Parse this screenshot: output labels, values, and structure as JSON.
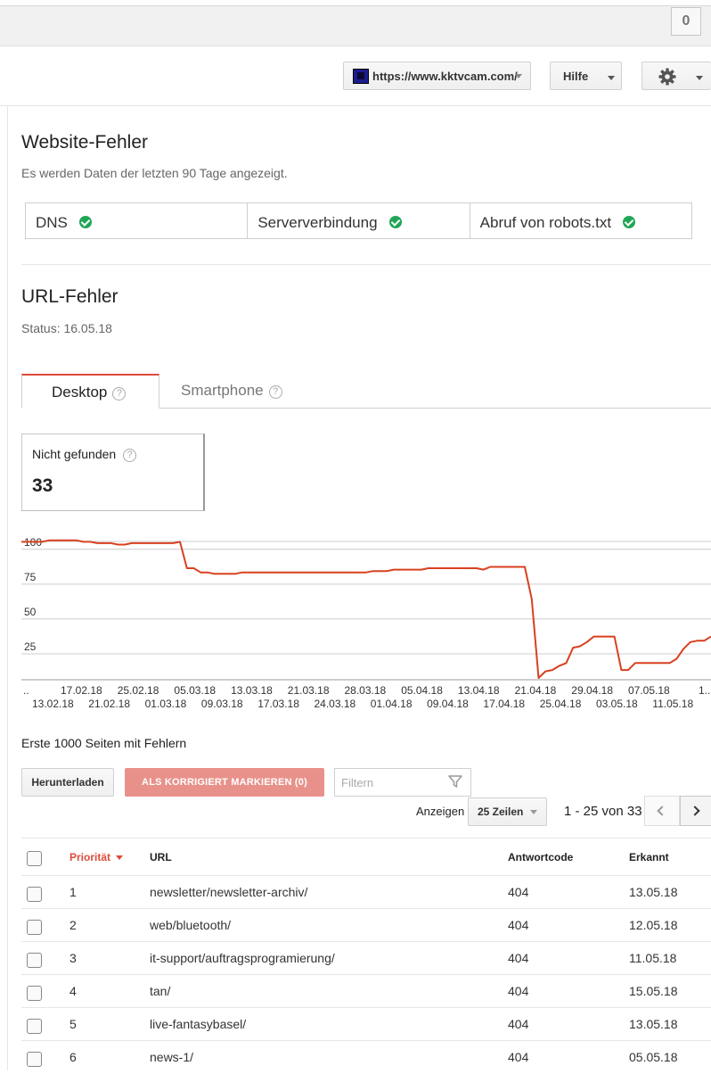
{
  "topbar": {
    "count": "0"
  },
  "header": {
    "site": "https://www.kktvcam.com/",
    "help_label": "Hilfe"
  },
  "site_errors": {
    "title": "Website-Fehler",
    "subtitle": "Es werden Daten der letzten 90 Tage angezeigt.",
    "checks": [
      {
        "label": "DNS",
        "status": "ok"
      },
      {
        "label": "Serververbindung",
        "status": "ok"
      },
      {
        "label": "Abruf von robots.txt",
        "status": "ok"
      }
    ]
  },
  "url_errors": {
    "title": "URL-Fehler",
    "status": "Status: 16.05.18",
    "tabs": [
      "Desktop",
      "Smartphone"
    ],
    "active_tab": "Desktop",
    "metric_label": "Nicht gefunden",
    "metric_value": "33"
  },
  "colors": {
    "accent": "#dd4b39",
    "line": "#d9401f",
    "ok": "#21a656"
  },
  "chart_data": {
    "type": "line",
    "ylim": [
      0,
      105
    ],
    "y_ticks": [
      100,
      75,
      50,
      25
    ],
    "x_tick_labels_top": [
      "..",
      "17.02.18",
      "25.02.18",
      "05.03.18",
      "13.03.18",
      "21.03.18",
      "28.03.18",
      "05.04.18",
      "13.04.18",
      "21.04.18",
      "29.04.18",
      "07.05.18",
      "1.."
    ],
    "x_tick_labels_bottom": [
      "13.02.18",
      "21.02.18",
      "01.03.18",
      "09.03.18",
      "17.03.18",
      "24.03.18",
      "01.04.18",
      "09.04.18",
      "17.04.18",
      "25.04.18",
      "03.05.18",
      "11.05.18"
    ],
    "series": [
      {
        "values": [
          99,
          99,
          99,
          99,
          100,
          100,
          100,
          100,
          100,
          99,
          99,
          98,
          98,
          98,
          97,
          97,
          98,
          98,
          98,
          98,
          98,
          98,
          98,
          99,
          80,
          80,
          77,
          77,
          76,
          76,
          76,
          76,
          77,
          77,
          77,
          77,
          77,
          77,
          77,
          77,
          77,
          77,
          77,
          77,
          77,
          77,
          77,
          77,
          77,
          77,
          77,
          78,
          78,
          78,
          79,
          79,
          79,
          79,
          79,
          80,
          80,
          80,
          80,
          80,
          80,
          80,
          80,
          79,
          81,
          81,
          81,
          81,
          81,
          81,
          58,
          1,
          6,
          7,
          10,
          12,
          23,
          24,
          27,
          31,
          31,
          31,
          31,
          7,
          7,
          12,
          12,
          12,
          12,
          12,
          12,
          15,
          22,
          27,
          28,
          28,
          31
        ]
      }
    ]
  },
  "table": {
    "title": "Erste 1000 Seiten mit Fehlern",
    "download_label": "Herunterladen",
    "mark_fixed_label": "ALS KORRIGIERT MARKIEREN (0)",
    "filter_placeholder": "Filtern",
    "show_label": "Anzeigen",
    "rows_per_page": "25 Zeilen",
    "range": "1 - 25 von 33",
    "columns": [
      "Priorität",
      "URL",
      "Antwortcode",
      "Erkannt"
    ],
    "rows": [
      {
        "priority": "1",
        "url": "newsletter/newsletter-archiv/",
        "code": "404",
        "detected": "13.05.18"
      },
      {
        "priority": "2",
        "url": "web/bluetooth/",
        "code": "404",
        "detected": "12.05.18"
      },
      {
        "priority": "3",
        "url": "it-support/auftragsprogramierung/",
        "code": "404",
        "detected": "11.05.18"
      },
      {
        "priority": "4",
        "url": "tan/",
        "code": "404",
        "detected": "15.05.18"
      },
      {
        "priority": "5",
        "url": "live-fantasybasel/",
        "code": "404",
        "detected": "13.05.18"
      },
      {
        "priority": "6",
        "url": "news-1/",
        "code": "404",
        "detected": "05.05.18"
      }
    ]
  }
}
